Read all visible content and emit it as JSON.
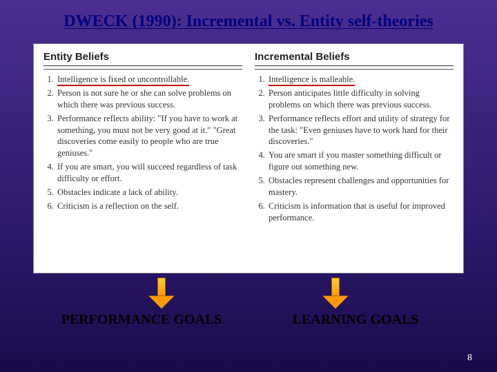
{
  "title": "DWECK (1990): Incremental vs. Entity self-theories",
  "pageNumber": "8",
  "columns": {
    "left": {
      "header": "Entity Beliefs",
      "items": [
        "Intelligence is fixed or uncontrollable.",
        "Person is not sure he or she can solve problems on which there was previous success.",
        "Performance reflects ability: \"If you have to work at something, you must not be very good at it.\" \"Great discoveries come easily to people who are true geniuses.\"",
        "If you are smart, you will succeed regardless of task difficulty or effort.",
        "Obstacles indicate a lack of ability.",
        "Criticism is a reflection on the self."
      ],
      "goal": "PERFORMANCE GOALS"
    },
    "right": {
      "header": "Incremental Beliefs",
      "items": [
        "Intelligence is malleable.",
        "Person anticipates little difficulty in solving problems on which there was previous success.",
        "Performance reflects effort and utility of strategy for the task: \"Even geniuses have to work hard for their discoveries.\"",
        "You are smart if you master something difficult or figure out something new.",
        "Obstacles represent challenges and opportunities for mastery.",
        "Criticism is information that is useful for improved performance."
      ],
      "goal": "LEARNING GOALS"
    }
  },
  "style": {
    "underlineColor": "#c00",
    "arrowFillTop": "#ffcc33",
    "arrowFillBottom": "#ff9900",
    "arrowBorder": "#aa6600",
    "titleColor": "#000080"
  }
}
